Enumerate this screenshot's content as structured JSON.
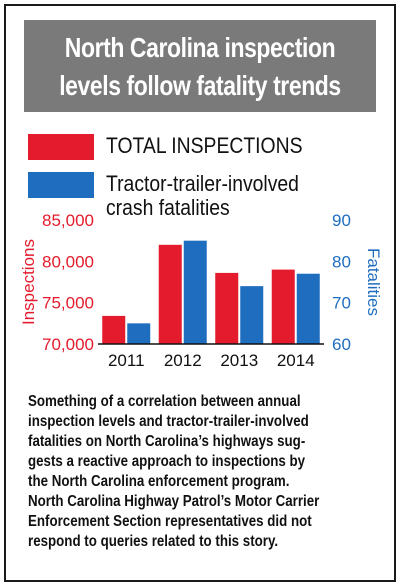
{
  "title": {
    "line1": "North Carolina inspection",
    "line2": "levels follow fatality trends"
  },
  "colors": {
    "inspections": "#e31b2c",
    "fatalities": "#1f6dbf",
    "title_bg": "#7a7a7a"
  },
  "legend": {
    "inspections": [
      "TOTAL INSPECTIONS"
    ],
    "fatalities": [
      "Tractor-trailer-involved",
      "crash fatalities"
    ]
  },
  "chart_data": {
    "type": "bar",
    "categories": [
      "2011",
      "2012",
      "2013",
      "2014"
    ],
    "series": [
      {
        "name": "TOTAL INSPECTIONS",
        "axis": "left",
        "values": [
          73400,
          82000,
          78600,
          79000
        ]
      },
      {
        "name": "Tractor-trailer-involved crash fatalities",
        "axis": "right",
        "values": [
          65,
          85,
          74,
          77
        ]
      }
    ],
    "ylabel": "Inspections",
    "ylabel_right": "Fatalities",
    "ylim": [
      70000,
      85000
    ],
    "ylim_right": [
      60,
      90
    ],
    "yticks": [
      "85,000",
      "80,000",
      "75,000",
      "70,000"
    ],
    "yticks_right": [
      "90",
      "80",
      "70",
      "60"
    ],
    "legend_position": "top",
    "grid": false
  },
  "caption": [
    "Something of a correlation between annual",
    "inspection levels and tractor-trailer-involved",
    "fatalities on North Carolina’s highways sug-",
    "gests a reactive approach to inspections by",
    "the North Carolina enforcement program.",
    "North Carolina Highway Patrol’s Motor Carrier",
    "Enforcement Section representatives did not",
    "respond to queries related to this story."
  ]
}
